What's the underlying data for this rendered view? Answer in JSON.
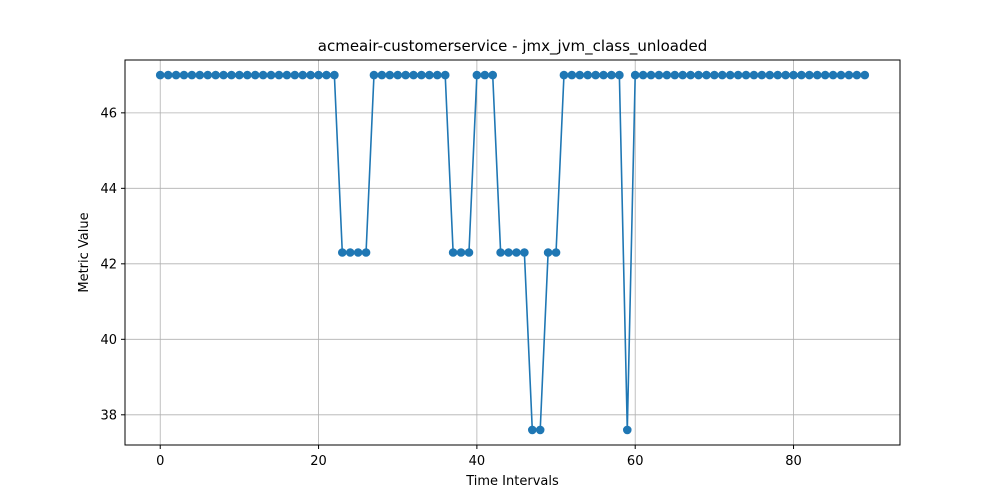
{
  "chart_data": {
    "type": "line",
    "title": "acmeair-customerservice - jmx_jvm_class_unloaded",
    "xlabel": "Time Intervals",
    "ylabel": "Metric Value",
    "xlim": [
      -4.45,
      93.45
    ],
    "ylim": [
      37.2,
      47.4
    ],
    "xticks": [
      0,
      20,
      40,
      60,
      80
    ],
    "yticks": [
      38,
      40,
      42,
      44,
      46
    ],
    "grid": true,
    "series": [
      {
        "color": "#1f77b4",
        "x": [
          0,
          1,
          2,
          3,
          4,
          5,
          6,
          7,
          8,
          9,
          10,
          11,
          12,
          13,
          14,
          15,
          16,
          17,
          18,
          19,
          20,
          21,
          22,
          23,
          24,
          25,
          26,
          27,
          28,
          29,
          30,
          31,
          32,
          33,
          34,
          35,
          36,
          37,
          38,
          39,
          40,
          41,
          42,
          43,
          44,
          45,
          46,
          47,
          48,
          49,
          50,
          51,
          52,
          53,
          54,
          55,
          56,
          57,
          58,
          59,
          60,
          61,
          62,
          63,
          64,
          65,
          66,
          67,
          68,
          69,
          70,
          71,
          72,
          73,
          74,
          75,
          76,
          77,
          78,
          79,
          80,
          81,
          82,
          83,
          84,
          85,
          86,
          87,
          88,
          89
        ],
        "y": [
          47.0,
          47.0,
          47.0,
          47.0,
          47.0,
          47.0,
          47.0,
          47.0,
          47.0,
          47.0,
          47.0,
          47.0,
          47.0,
          47.0,
          47.0,
          47.0,
          47.0,
          47.0,
          47.0,
          47.0,
          47.0,
          47.0,
          47.0,
          42.3,
          42.3,
          42.3,
          42.3,
          47.0,
          47.0,
          47.0,
          47.0,
          47.0,
          47.0,
          47.0,
          47.0,
          47.0,
          47.0,
          42.3,
          42.3,
          42.3,
          47.0,
          47.0,
          47.0,
          42.3,
          42.3,
          42.3,
          42.3,
          37.6,
          37.6,
          42.3,
          42.3,
          47.0,
          47.0,
          47.0,
          47.0,
          47.0,
          47.0,
          47.0,
          47.0,
          37.6,
          47.0,
          47.0,
          47.0,
          47.0,
          47.0,
          47.0,
          47.0,
          47.0,
          47.0,
          47.0,
          47.0,
          47.0,
          47.0,
          47.0,
          47.0,
          47.0,
          47.0,
          47.0,
          47.0,
          47.0,
          47.0,
          47.0,
          47.0,
          47.0,
          47.0,
          47.0,
          47.0,
          47.0,
          47.0,
          47.0
        ]
      }
    ]
  }
}
